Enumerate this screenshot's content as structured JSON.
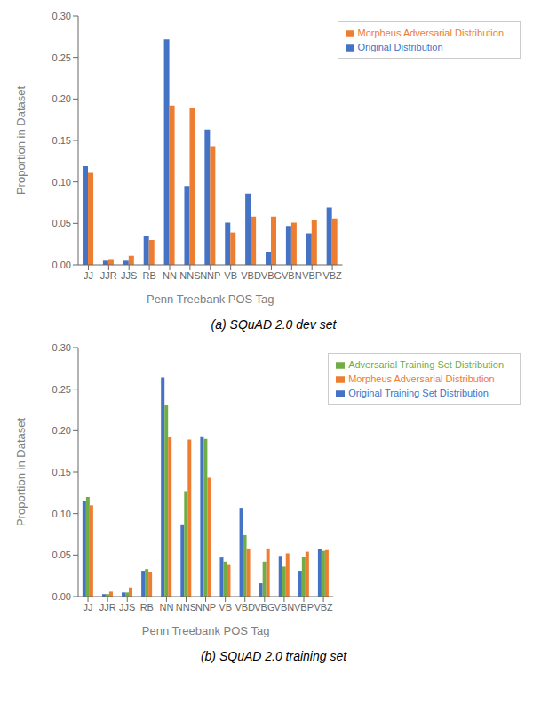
{
  "chart_data": [
    {
      "type": "bar",
      "title": "(a) SQuAD 2.0 dev set",
      "xlabel": "Penn Treebank POS Tag",
      "ylabel": "Proportion in Dataset",
      "categories": [
        "JJ",
        "JJR",
        "JJS",
        "RB",
        "NN",
        "NNS",
        "NNP",
        "VB",
        "VBD",
        "VBG",
        "VBN",
        "VBP",
        "VBZ"
      ],
      "series": [
        {
          "name": "Original Distribution",
          "color": "#4472c4",
          "values": [
            0.119,
            0.005,
            0.005,
            0.035,
            0.272,
            0.095,
            0.163,
            0.051,
            0.086,
            0.016,
            0.047,
            0.038,
            0.069
          ]
        },
        {
          "name": "Morpheus Adversarial Distribution",
          "color": "#ed7d31",
          "values": [
            0.111,
            0.007,
            0.011,
            0.03,
            0.192,
            0.189,
            0.143,
            0.039,
            0.058,
            0.058,
            0.051,
            0.054,
            0.056
          ]
        }
      ],
      "ylim": [
        0.0,
        0.3
      ],
      "yticks": [
        {
          "value": 0.0,
          "label": "0.00"
        },
        0.05,
        {
          "value": 0.1,
          "label": "0.10"
        },
        0.15,
        {
          "value": 0.2,
          "label": "0.20"
        },
        0.25,
        {
          "value": 0.3,
          "label": "0.30"
        }
      ],
      "grid": false,
      "legend": "upper right"
    },
    {
      "type": "bar",
      "title": "(b) SQuAD 2.0 training set",
      "xlabel": "Penn Treebank POS Tag",
      "ylabel": "Proportion in Dataset",
      "categories": [
        "JJ",
        "JJR",
        "JJS",
        "RB",
        "NN",
        "NNS",
        "NNP",
        "VB",
        "VBD",
        "VBG",
        "VBN",
        "VBP",
        "VBZ"
      ],
      "series": [
        {
          "name": "Original Training Set Distribution",
          "color": "#4472c4",
          "values": [
            0.115,
            0.003,
            0.005,
            0.031,
            0.264,
            0.087,
            0.193,
            0.047,
            0.107,
            0.016,
            0.049,
            0.031,
            0.057
          ]
        },
        {
          "name": "Adversarial Training Set Distribution",
          "color": "#70ad47",
          "values": [
            0.12,
            0.003,
            0.005,
            0.033,
            0.231,
            0.127,
            0.19,
            0.042,
            0.074,
            0.042,
            0.036,
            0.048,
            0.055
          ]
        },
        {
          "name": "Morpheus Adversarial Distribution",
          "color": "#ed7d31",
          "values": [
            0.11,
            0.006,
            0.011,
            0.03,
            0.192,
            0.189,
            0.143,
            0.039,
            0.058,
            0.058,
            0.052,
            0.054,
            0.056
          ]
        }
      ],
      "ylim": [
        0.0,
        0.3
      ],
      "yticks": [
        {
          "value": 0.0,
          "label": "0.00"
        },
        0.05,
        {
          "value": 0.1,
          "label": "0.10"
        },
        0.15,
        {
          "value": 0.2,
          "label": "0.20"
        },
        0.25,
        {
          "value": 0.3,
          "label": "0.30"
        }
      ],
      "grid": false,
      "legend": "upper right"
    }
  ]
}
